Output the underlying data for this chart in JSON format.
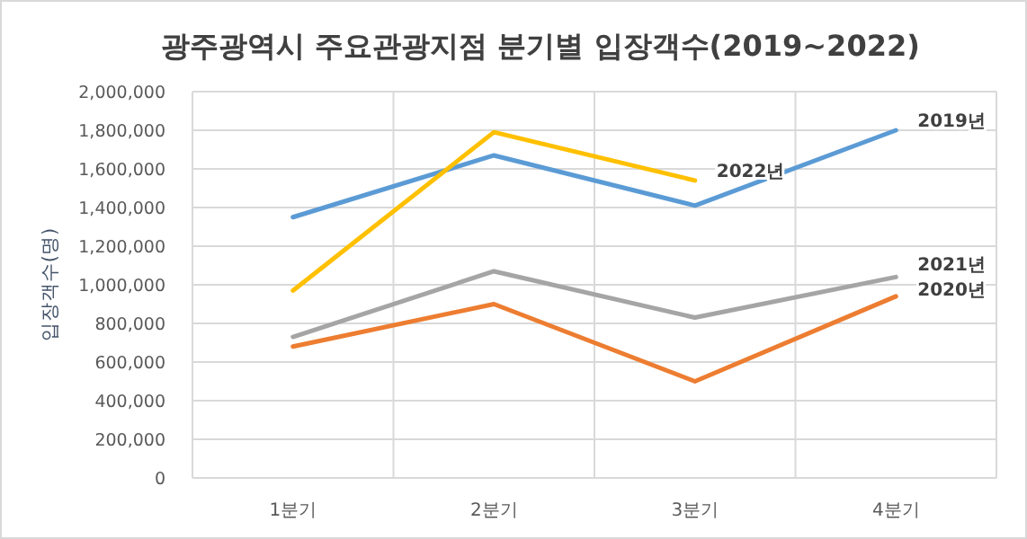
{
  "chart_data": {
    "type": "line",
    "title": "광주광역시 주요관광지점 분기별 입장객수(2019~2022)",
    "ylabel": "입장객수(명)",
    "categories": [
      "1분기",
      "2분기",
      "3분기",
      "4분기"
    ],
    "series": [
      {
        "name": "2019년",
        "color": "#5b9bd5",
        "values": [
          1350000,
          1670000,
          1410000,
          1800000
        ]
      },
      {
        "name": "2020년",
        "color": "#ed7d31",
        "values": [
          680000,
          900000,
          500000,
          940000
        ]
      },
      {
        "name": "2021년",
        "color": "#a5a5a5",
        "values": [
          730000,
          1070000,
          830000,
          1040000
        ]
      },
      {
        "name": "2022년",
        "color": "#ffc000",
        "values": [
          970000,
          1790000,
          1540000,
          null
        ]
      }
    ],
    "ylim": [
      0,
      2000000
    ],
    "yticks": [
      {
        "value": 0,
        "label": "0"
      },
      {
        "value": 200000,
        "label": "200,000"
      },
      {
        "value": 400000,
        "label": "400,000"
      },
      {
        "value": 600000,
        "label": "600,000"
      },
      {
        "value": 800000,
        "label": "800,000"
      },
      {
        "value": 1000000,
        "label": "1,000,000"
      },
      {
        "value": 1200000,
        "label": "1,200,000"
      },
      {
        "value": 1400000,
        "label": "1,400,000"
      },
      {
        "value": 1600000,
        "label": "1,600,000"
      },
      {
        "value": 1800000,
        "label": "1,800,000"
      },
      {
        "value": 2000000,
        "label": "2,000,000"
      }
    ],
    "grid": true,
    "legend": false,
    "marker": "none",
    "line_style": "solid"
  }
}
